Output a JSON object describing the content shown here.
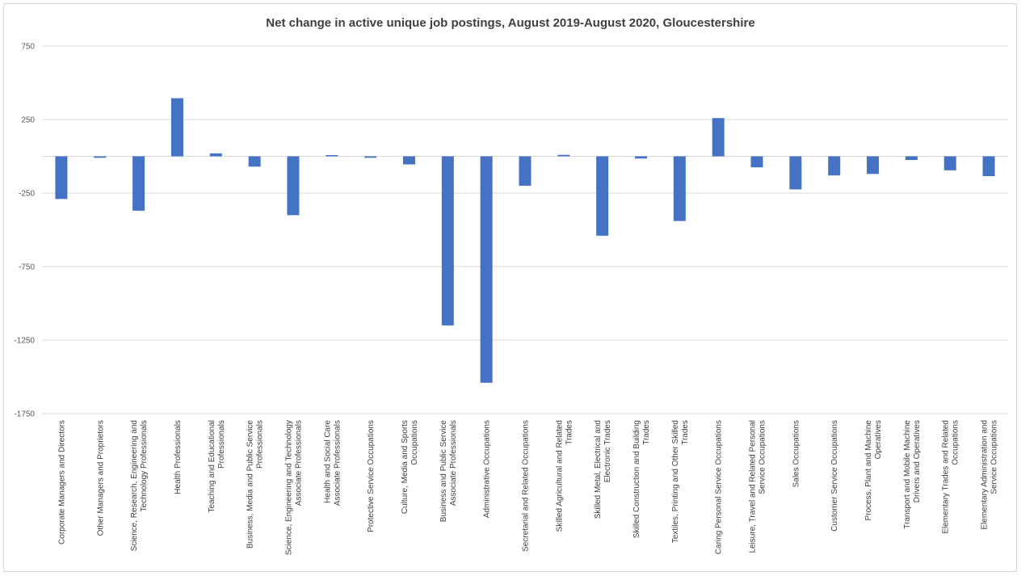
{
  "chart_data": {
    "type": "bar",
    "title": "Net change in active unique job postings, August 2019-August 2020, Gloucestershire",
    "xlabel": "",
    "ylabel": "",
    "ylim": [
      -1750,
      750
    ],
    "yticks": [
      750,
      250,
      -250,
      -750,
      -1250,
      -1750
    ],
    "grid": true,
    "bar_color": "#4472C4",
    "categories": [
      [
        "Corporate Managers and Directors"
      ],
      [
        "Other Managers and Proprietors"
      ],
      [
        "Science, Research, Engineering and",
        "Technology Professionals"
      ],
      [
        "Health Professionals"
      ],
      [
        "Teaching and Educational",
        "Professionals"
      ],
      [
        "Business, Media and Public Service",
        "Professionals"
      ],
      [
        "Science, Engineering and Technology",
        "Associate Professionals"
      ],
      [
        "Health and Social Care",
        "Associate Professionals"
      ],
      [
        "Protective Service Occupations"
      ],
      [
        "Culture, Media and Sports",
        "Occupations"
      ],
      [
        "Business and Public Service",
        "Associate Professionals"
      ],
      [
        "Administrative Occupations"
      ],
      [
        "Secretarial and Related Occupations"
      ],
      [
        "Skilled Agricultural and Related",
        "Trades"
      ],
      [
        "Skilled Metal, Electrical and",
        "Electronic Trades"
      ],
      [
        "Skilled Construction and Building",
        "Trades"
      ],
      [
        "Textiles, Printing and Other Skilled",
        "Trades"
      ],
      [
        "Caring Personal Service Occupations"
      ],
      [
        "Leisure, Travel and Related Personal",
        "Service Occupations"
      ],
      [
        "Sales Occupations"
      ],
      [
        "Customer Service Occupations"
      ],
      [
        "Process, Plant and Machine",
        "Operatives"
      ],
      [
        "Transport and Mobile Machine",
        "Drivers and Operatives"
      ],
      [
        "Elementary Trades and Related",
        "Occupations"
      ],
      [
        "Elementary Administration and",
        "Service Occupations"
      ]
    ],
    "values": [
      -290,
      -10,
      -370,
      395,
      20,
      -70,
      -400,
      0,
      -10,
      -55,
      -1150,
      -1540,
      -200,
      10,
      -540,
      -15,
      -440,
      260,
      -75,
      -225,
      -130,
      -120,
      -25,
      -95,
      -135
    ]
  }
}
